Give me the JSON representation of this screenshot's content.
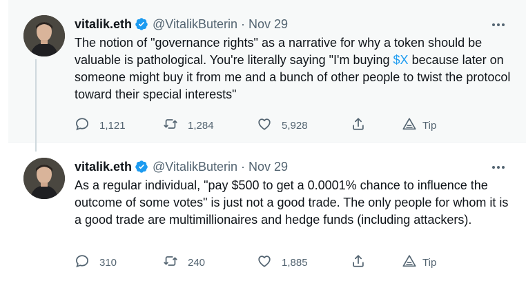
{
  "tweets": [
    {
      "author": {
        "display_name": "vitalik.eth",
        "handle": "@VitalikButerin",
        "verified": true
      },
      "separator": "·",
      "timestamp": "Nov 29",
      "text_before": "The notion of \"governance rights\" as a narrative for why a token should be valuable is pathological. You're literally saying \"I'm buying ",
      "cashtag": "$X",
      "text_after": " because later on someone might buy it from me and a bunch of other people to twist the protocol toward their special interests\"",
      "replies": "1,121",
      "retweets": "1,284",
      "likes": "5,928",
      "tip_label": "Tip"
    },
    {
      "author": {
        "display_name": "vitalik.eth",
        "handle": "@VitalikButerin",
        "verified": true
      },
      "separator": "·",
      "timestamp": "Nov 29",
      "text": "As a regular individual, \"pay $500 to get a 0.0001% chance to influence the outcome of some votes\" is just not a good trade. The only people for whom it is a good trade are multimillionaires and hedge funds (including attackers).",
      "replies": "310",
      "retweets": "240",
      "likes": "1,885",
      "tip_label": "Tip"
    }
  ],
  "colors": {
    "accent": "#1d9bf0",
    "text_primary": "#0f1419",
    "text_secondary": "#536471",
    "thread_line": "#cfd9de",
    "highlight_bg": "#f7f9f9"
  },
  "icons": [
    "verified-badge-icon",
    "more-options-icon",
    "reply-icon",
    "retweet-icon",
    "like-icon",
    "share-icon",
    "tip-icon"
  ]
}
